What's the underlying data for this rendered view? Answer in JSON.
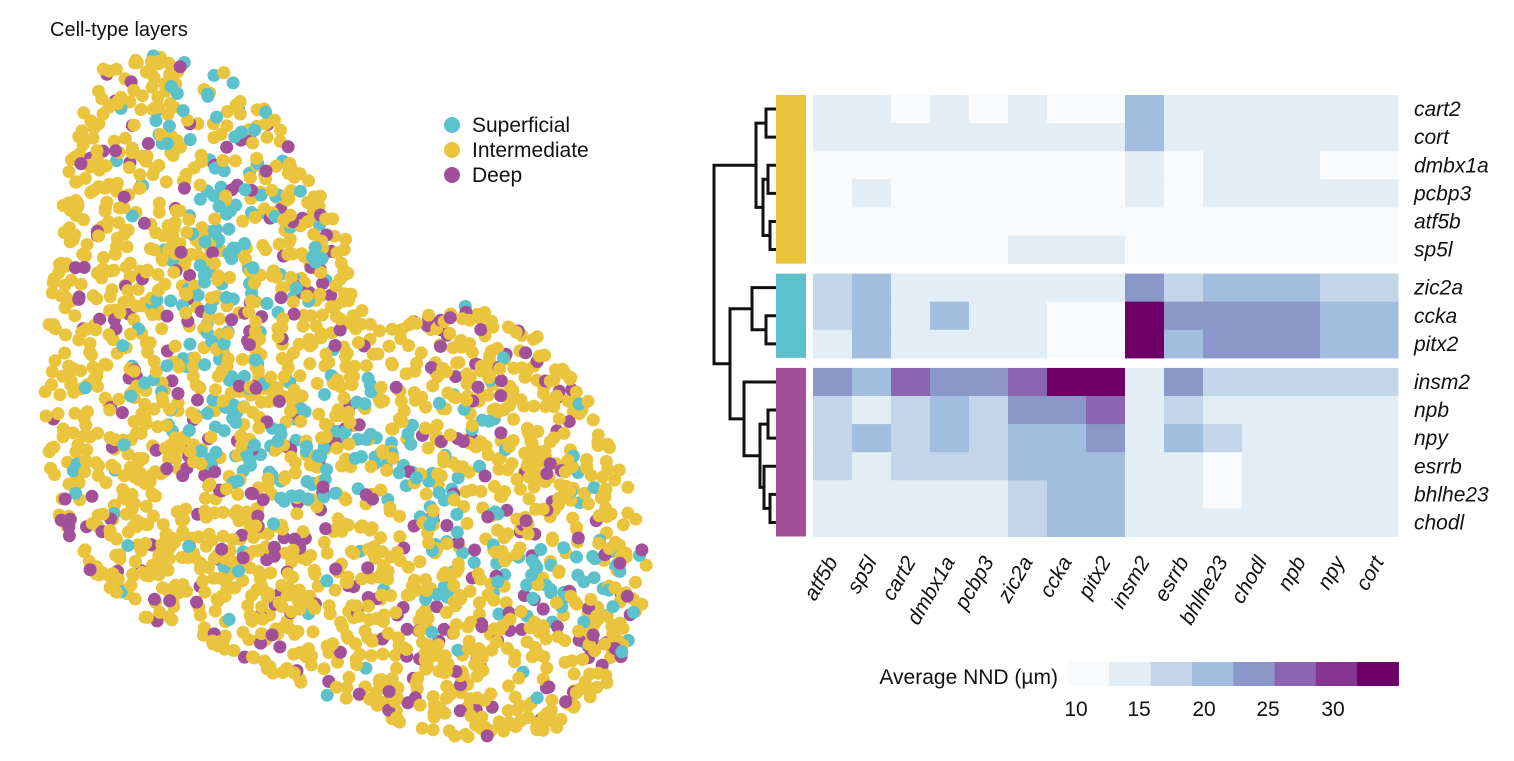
{
  "scatter": {
    "title": "Cell-type layers",
    "legend": [
      {
        "label": "Superficial",
        "color": "#5bc2cc"
      },
      {
        "label": "Intermediate",
        "color": "#e9c43c"
      },
      {
        "label": "Deep",
        "color": "#a3509a"
      }
    ]
  },
  "chart_data": [
    {
      "type": "scatter",
      "title": "Cell-type layers",
      "series": [
        {
          "name": "Superficial",
          "color": "#5bc2cc"
        },
        {
          "name": "Intermediate",
          "color": "#e9c43c"
        },
        {
          "name": "Deep",
          "color": "#a3509a"
        }
      ]
    },
    {
      "type": "heatmap",
      "colorbar_label": "Average NND (µm)",
      "colorbar_ticks": [
        "10",
        "15",
        "20",
        "25",
        "30"
      ],
      "colorbar_colors": [
        "#f7fbfd",
        "#e3edf6",
        "#c3d5e8",
        "#a2bede",
        "#8b96c9",
        "#8d64b0",
        "#86358f",
        "#6c0066"
      ],
      "value_range": [
        10,
        35
      ],
      "rows": [
        "cart2",
        "cort",
        "dmbx1a",
        "pcbp3",
        "atf5b",
        "sp5l",
        "zic2a",
        "ccka",
        "pitx2",
        "insm2",
        "npb",
        "npy",
        "esrrb",
        "bhlhe23",
        "chodl"
      ],
      "columns": [
        "atf5b",
        "sp5l",
        "cart2",
        "dmbx1a",
        "pcbp3",
        "zic2a",
        "ccka",
        "pitx2",
        "insm2",
        "esrrb",
        "bhlhe23",
        "chodl",
        "npb",
        "npy",
        "cort"
      ],
      "row_groups": [
        {
          "name": "Intermediate",
          "rows": 6,
          "color": "#e9c43c"
        },
        {
          "name": "Superficial",
          "rows": 3,
          "color": "#5bc2cc"
        },
        {
          "name": "Deep",
          "rows": 6,
          "color": "#a3509a"
        }
      ],
      "values": [
        [
          12,
          15,
          10,
          12,
          10,
          12,
          11,
          11,
          19,
          12,
          15,
          12,
          12,
          12,
          12
        ],
        [
          12,
          12,
          12,
          12,
          12,
          12,
          12,
          12,
          19,
          15,
          12,
          15,
          15,
          12,
          12
        ],
        [
          10,
          10,
          10,
          10,
          10,
          10,
          10,
          10,
          12,
          10,
          12,
          12,
          12,
          10,
          10
        ],
        [
          10,
          12,
          10,
          10,
          10,
          10,
          10,
          10,
          15,
          10,
          12,
          12,
          12,
          12,
          12
        ],
        [
          10,
          10,
          10,
          10,
          10,
          10,
          10,
          10,
          10,
          10,
          10,
          10,
          10,
          10,
          10
        ],
        [
          10,
          10,
          10,
          10,
          10,
          12,
          12,
          12,
          10,
          10,
          10,
          10,
          10,
          10,
          10
        ],
        [
          17,
          22,
          15,
          15,
          15,
          12,
          12,
          12,
          26,
          17,
          22,
          22,
          22,
          18,
          18
        ],
        [
          17,
          22,
          15,
          19,
          15,
          15,
          10,
          8,
          35,
          26,
          26,
          26,
          25,
          22,
          22
        ],
        [
          15,
          22,
          12,
          15,
          15,
          12,
          10,
          10,
          35,
          21,
          26,
          26,
          25,
          22,
          22
        ],
        [
          26,
          20,
          29,
          26,
          26,
          29,
          34,
          34,
          15,
          26,
          18,
          18,
          18,
          18,
          18
        ],
        [
          18,
          15,
          18,
          22,
          18,
          26,
          26,
          28,
          15,
          18,
          15,
          12,
          12,
          12,
          12
        ],
        [
          18,
          22,
          18,
          22,
          18,
          22,
          22,
          26,
          15,
          22,
          18,
          15,
          15,
          15,
          15
        ],
        [
          18,
          15,
          18,
          18,
          18,
          22,
          22,
          22,
          15,
          15,
          10,
          15,
          15,
          15,
          15
        ],
        [
          15,
          12,
          15,
          15,
          15,
          18,
          22,
          22,
          12,
          12,
          10,
          12,
          12,
          12,
          12
        ],
        [
          15,
          12,
          15,
          15,
          15,
          18,
          22,
          22,
          12,
          15,
          12,
          12,
          12,
          12,
          12
        ]
      ]
    }
  ]
}
